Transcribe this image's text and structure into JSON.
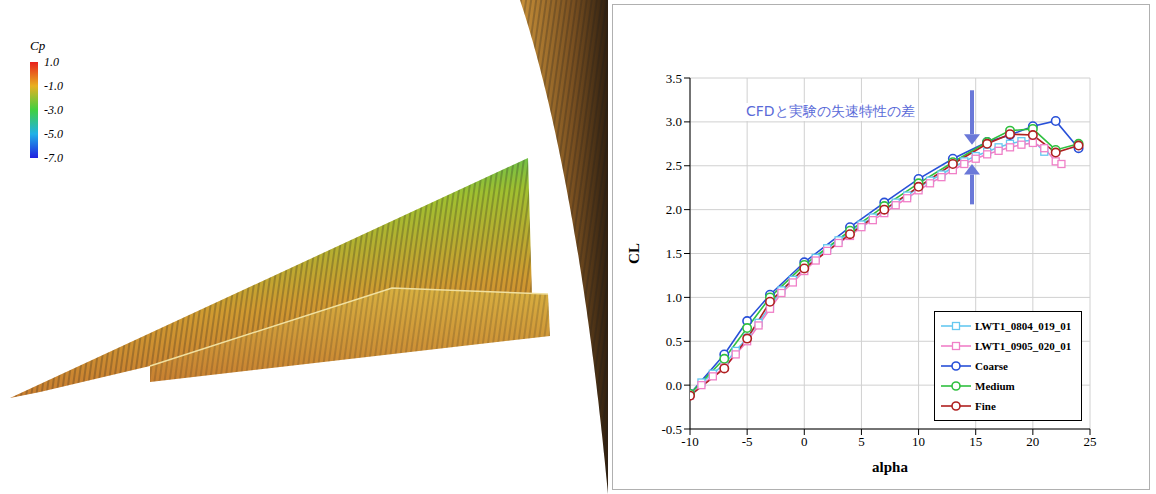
{
  "chart_data": {
    "type": "line",
    "annotation": "CFDと実験の失速特性の差",
    "x_label": "alpha",
    "y_label": "CL",
    "xlim": [
      -10,
      25
    ],
    "xticks": [
      -10,
      -5,
      0,
      5,
      10,
      15,
      20,
      25
    ],
    "ylim": [
      -0.5,
      3.5
    ],
    "yticks": [
      {
        "value": -0.5,
        "label": "-0.5"
      },
      {
        "value": 0,
        "label": "0.0"
      },
      {
        "value": 0.5,
        "label": "0.5"
      },
      {
        "value": 1,
        "label": "1.0"
      },
      {
        "value": 1.5,
        "label": "1.5"
      },
      {
        "value": 2,
        "label": "2.0"
      },
      {
        "value": 2.5,
        "label": "2.5"
      },
      {
        "value": 3,
        "label": "3.0"
      },
      {
        "value": 3.5,
        "label": "3.5"
      }
    ],
    "grid": true,
    "legend": "lower right",
    "series": [
      {
        "name": "LWT1_0804_019_01",
        "color": "#66c8f0",
        "marker": "square",
        "line_style": "solid",
        "x": [
          -10,
          -9,
          -8,
          -7,
          -6,
          -5,
          -4,
          -3,
          -2,
          -1,
          0,
          1,
          2,
          3,
          4,
          5,
          6,
          7,
          8,
          9,
          10,
          11,
          12,
          13,
          14,
          15,
          16,
          17,
          18,
          19,
          20,
          21
        ],
        "values": [
          -0.1,
          0.03,
          0.13,
          0.24,
          0.39,
          0.54,
          0.71,
          0.9,
          1.08,
          1.2,
          1.33,
          1.45,
          1.56,
          1.65,
          1.74,
          1.83,
          1.91,
          1.99,
          2.08,
          2.16,
          2.25,
          2.33,
          2.4,
          2.48,
          2.55,
          2.61,
          2.66,
          2.71,
          2.75,
          2.78,
          2.79,
          2.66
        ]
      },
      {
        "name": "LWT1_0905_020_01",
        "color": "#f080c8",
        "marker": "square",
        "line_style": "solid",
        "x": [
          -10,
          -9,
          -8,
          -7,
          -6,
          -5,
          -4,
          -3,
          -2,
          -1,
          0,
          1,
          2,
          3,
          4,
          5,
          6,
          7,
          8,
          9,
          10,
          11,
          12,
          13,
          14,
          15,
          16,
          17,
          18,
          19,
          20,
          21,
          22,
          22.5
        ],
        "values": [
          -0.12,
          0.0,
          0.1,
          0.2,
          0.35,
          0.5,
          0.68,
          0.87,
          1.05,
          1.17,
          1.3,
          1.42,
          1.53,
          1.62,
          1.7,
          1.8,
          1.88,
          1.96,
          2.05,
          2.13,
          2.22,
          2.3,
          2.37,
          2.45,
          2.52,
          2.58,
          2.63,
          2.67,
          2.71,
          2.74,
          2.76,
          2.7,
          2.55,
          2.52
        ]
      },
      {
        "name": "Coarse",
        "color": "#2850d8",
        "marker": "circle",
        "line_style": "solid",
        "x": [
          -10,
          -7,
          -5,
          -3,
          0,
          4,
          7,
          10,
          13,
          16,
          18,
          20,
          22,
          24
        ],
        "values": [
          -0.1,
          0.35,
          0.73,
          1.03,
          1.4,
          1.8,
          2.08,
          2.35,
          2.58,
          2.77,
          2.85,
          2.95,
          3.01,
          2.7
        ]
      },
      {
        "name": "Medium",
        "color": "#30c040",
        "marker": "circle",
        "line_style": "solid",
        "x": [
          -10,
          -7,
          -5,
          -3,
          0,
          4,
          7,
          10,
          13,
          16,
          18,
          20,
          22,
          24
        ],
        "values": [
          -0.1,
          0.3,
          0.65,
          1.0,
          1.37,
          1.76,
          2.04,
          2.3,
          2.54,
          2.77,
          2.9,
          2.92,
          2.68,
          2.75
        ]
      },
      {
        "name": "Fine",
        "color": "#b02020",
        "marker": "circle",
        "line_style": "solid",
        "x": [
          -10,
          -7,
          -5,
          -3,
          0,
          4,
          7,
          10,
          13,
          16,
          18,
          20,
          22,
          24
        ],
        "values": [
          -0.12,
          0.19,
          0.53,
          0.95,
          1.33,
          1.72,
          2.0,
          2.26,
          2.52,
          2.75,
          2.86,
          2.85,
          2.65,
          2.73
        ]
      }
    ]
  },
  "colorbar": {
    "title": "Cp",
    "range": [
      -7,
      1
    ],
    "ticks": [
      {
        "value": 1,
        "label": "1.0"
      },
      {
        "value": -1,
        "label": "-1.0"
      },
      {
        "value": -3,
        "label": "-3.0"
      },
      {
        "value": -5,
        "label": "-5.0"
      },
      {
        "value": -7,
        "label": "-7.0"
      }
    ],
    "colors": [
      "#e8201c",
      "#e8b020",
      "#40d040",
      "#20b0e8",
      "#2020e0"
    ]
  }
}
